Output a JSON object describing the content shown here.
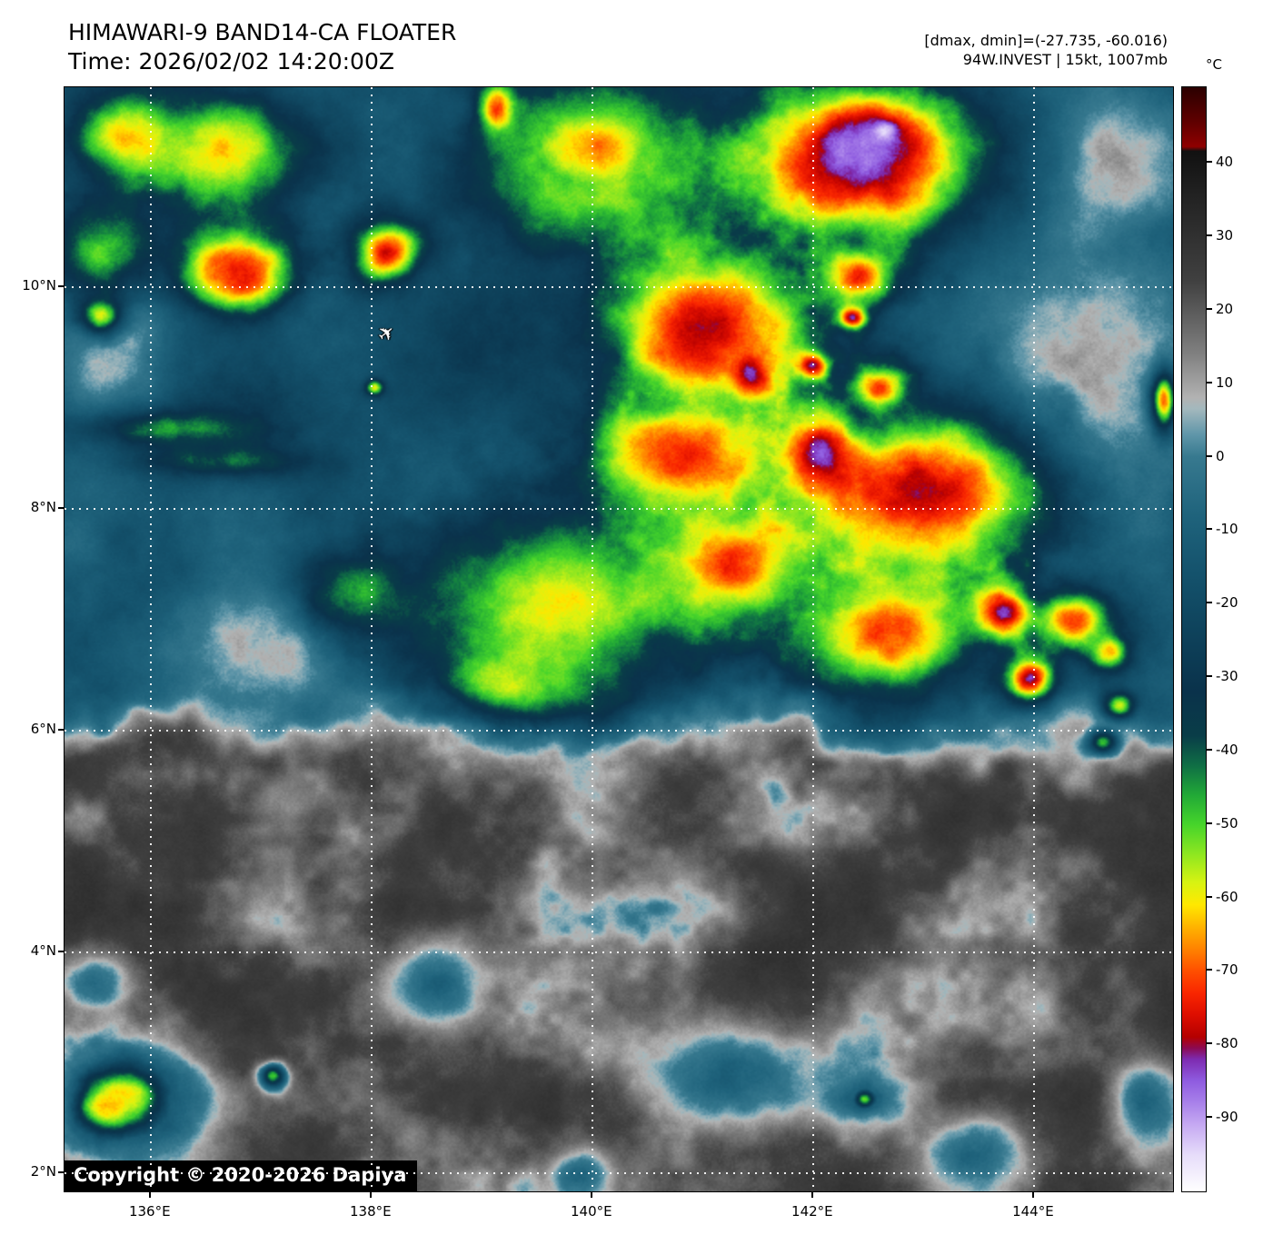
{
  "header": {
    "title": "HIMAWARI-9 BAND14-CA FLOATER",
    "time": "Time: 2026/02/02 14:20:00Z",
    "dmax_dmin": "[dmax, dmin]=(-27.735, -60.016)",
    "storm_info": "94W.INVEST | 15kt, 1007mb"
  },
  "colorbar": {
    "unit": "°C",
    "tick_values": [
      40,
      30,
      20,
      10,
      0,
      -10,
      -20,
      -30,
      -40,
      -50,
      -60,
      -70,
      -80,
      -90
    ],
    "domain": {
      "max": 50.3,
      "min": -100
    },
    "stops": [
      [
        50.3,
        "#2b0000"
      ],
      [
        45.5,
        "#600000"
      ],
      [
        42.2,
        "#8f0000"
      ],
      [
        41.6,
        "#111111"
      ],
      [
        34.0,
        "#262626"
      ],
      [
        24.0,
        "#404040"
      ],
      [
        14.0,
        "#808080"
      ],
      [
        8.0,
        "#b2b2b2"
      ],
      [
        6.5,
        "#a3b8bd"
      ],
      [
        3.0,
        "#5f96a9"
      ],
      [
        0.0,
        "#37798f"
      ],
      [
        -8.0,
        "#1f637c"
      ],
      [
        -16.0,
        "#14526c"
      ],
      [
        -24.0,
        "#0e425b"
      ],
      [
        -32.0,
        "#0a324b"
      ],
      [
        -38.0,
        "#093d48"
      ],
      [
        -42.0,
        "#0f6e45"
      ],
      [
        -46.0,
        "#21a837"
      ],
      [
        -50.0,
        "#45d42b"
      ],
      [
        -54.0,
        "#8ce621"
      ],
      [
        -58.0,
        "#d8f312"
      ],
      [
        -61.0,
        "#ffe800"
      ],
      [
        -64.0,
        "#ffb300"
      ],
      [
        -67.0,
        "#ff8300"
      ],
      [
        -70.0,
        "#ff4f00"
      ],
      [
        -73.0,
        "#f92600"
      ],
      [
        -76.0,
        "#dd0e00"
      ],
      [
        -79.0,
        "#b40000"
      ],
      [
        -80.5,
        "#8c0a52"
      ],
      [
        -82.0,
        "#7d2bb0"
      ],
      [
        -85.0,
        "#8f5ce0"
      ],
      [
        -88.0,
        "#a982ea"
      ],
      [
        -91.0,
        "#c6aaf2"
      ],
      [
        -95.0,
        "#e6dcfa"
      ],
      [
        -100.0,
        "#ffffff"
      ]
    ]
  },
  "map": {
    "extent": {
      "lon_min": 135.22,
      "lon_max": 145.26,
      "lat_min": 1.84,
      "lat_max": 11.8
    },
    "lat_ticks": [
      {
        "label": "10°N",
        "lat": 10
      },
      {
        "label": "8°N",
        "lat": 8
      },
      {
        "label": "6°N",
        "lat": 6
      },
      {
        "label": "4°N",
        "lat": 4
      },
      {
        "label": "2°N",
        "lat": 2
      }
    ],
    "lon_ticks": [
      {
        "label": "136°E",
        "lon": 136
      },
      {
        "label": "138°E",
        "lon": 138
      },
      {
        "label": "140°E",
        "lon": 140
      },
      {
        "label": "142°E",
        "lon": 142
      },
      {
        "label": "144°E",
        "lon": 144
      }
    ],
    "copyright": "Copyright © 2020-2026 Dapiya",
    "aircraft": {
      "lon": 138.17,
      "lat": 9.55,
      "glyph": "✈"
    }
  },
  "satellite": {
    "format": "[lon_deg_e, lat_deg_n, rx_deg, ry_deg, peak_cloudtop_temp_c]",
    "base": {
      "south_surface_temp_c": 31,
      "north_cirrus_temp_c": -13,
      "canopy_boundary_lat": 6.0
    },
    "features": [
      [
        135.77,
        11.35,
        0.6,
        0.45,
        -64
      ],
      [
        136.66,
        11.23,
        0.78,
        0.55,
        -63
      ],
      [
        136.76,
        10.16,
        0.6,
        0.45,
        -68
      ],
      [
        136.82,
        10.12,
        0.3,
        0.25,
        -74
      ],
      [
        135.55,
        10.32,
        0.5,
        0.45,
        -51
      ],
      [
        135.55,
        9.75,
        0.22,
        0.18,
        -58
      ],
      [
        138.14,
        10.32,
        0.33,
        0.3,
        -76
      ],
      [
        138.02,
        9.1,
        0.1,
        0.09,
        -60
      ],
      [
        139.13,
        11.61,
        0.18,
        0.26,
        -74
      ],
      [
        139.99,
        11.27,
        0.8,
        0.55,
        -66
      ],
      [
        139.9,
        11.0,
        1.25,
        0.75,
        -50
      ],
      [
        142.38,
        11.14,
        1.3,
        0.82,
        -78
      ],
      [
        142.48,
        11.28,
        0.5,
        0.42,
        -88
      ],
      [
        142.64,
        11.41,
        0.12,
        0.1,
        -96
      ],
      [
        142.4,
        10.1,
        0.3,
        0.26,
        -74
      ],
      [
        142.35,
        9.73,
        0.12,
        0.1,
        -83
      ],
      [
        142.6,
        9.09,
        0.25,
        0.2,
        -71
      ],
      [
        141.02,
        9.63,
        1.05,
        0.85,
        -78
      ],
      [
        141.42,
        9.21,
        0.2,
        0.2,
        -84
      ],
      [
        141.99,
        9.3,
        0.15,
        0.13,
        -83
      ],
      [
        142.95,
        8.15,
        1.3,
        0.85,
        -79
      ],
      [
        142.05,
        8.5,
        0.35,
        0.38,
        -86
      ],
      [
        142.94,
        8.31,
        0.1,
        0.09,
        -81
      ],
      [
        140.81,
        8.48,
        0.95,
        0.6,
        -74
      ],
      [
        141.27,
        7.5,
        0.7,
        0.55,
        -74
      ],
      [
        142.67,
        6.92,
        0.85,
        0.6,
        -72
      ],
      [
        143.74,
        7.07,
        0.27,
        0.25,
        -84
      ],
      [
        143.96,
        6.47,
        0.25,
        0.22,
        -82
      ],
      [
        139.66,
        7.13,
        1.45,
        1.0,
        -60
      ],
      [
        137.85,
        7.25,
        0.55,
        0.4,
        -46
      ],
      [
        139.25,
        6.47,
        0.6,
        0.35,
        -57
      ],
      [
        144.35,
        7.0,
        0.38,
        0.3,
        -72
      ],
      [
        144.68,
        6.72,
        0.2,
        0.18,
        -64
      ],
      [
        144.77,
        6.23,
        0.15,
        0.13,
        -60
      ],
      [
        144.62,
        5.9,
        0.15,
        0.13,
        -48
      ],
      [
        145.17,
        8.98,
        0.12,
        0.3,
        -68
      ],
      [
        135.8,
        2.7,
        0.5,
        0.4,
        -60
      ],
      [
        135.6,
        2.62,
        0.3,
        0.28,
        -63
      ],
      [
        137.1,
        2.89,
        0.13,
        0.12,
        -48
      ],
      [
        142.46,
        2.68,
        0.12,
        0.1,
        -52
      ],
      [
        139.05,
        9.55,
        0.9,
        0.8,
        -28
      ],
      [
        136.91,
        8.97,
        1.0,
        0.65,
        -25
      ],
      [
        136.21,
        8.73,
        0.9,
        0.2,
        -45
      ],
      [
        136.7,
        8.44,
        0.8,
        0.15,
        -42
      ],
      [
        135.9,
        2.6,
        0.8,
        0.6,
        -12
      ],
      [
        142.4,
        2.7,
        0.45,
        0.25,
        -10
      ],
      [
        138.57,
        3.71,
        0.45,
        0.4,
        -9
      ],
      [
        141.23,
        2.9,
        0.85,
        0.5,
        -10
      ],
      [
        139.88,
        2.0,
        0.3,
        0.2,
        -8
      ],
      [
        143.45,
        2.17,
        0.5,
        0.35,
        -9
      ],
      [
        145.0,
        2.66,
        0.3,
        0.4,
        -8
      ],
      [
        135.5,
        3.72,
        0.3,
        0.25,
        -8
      ]
    ],
    "warm_regions": [
      [
        135.69,
        9.34,
        0.55,
        0.85,
        12
      ],
      [
        144.41,
        9.14,
        1.0,
        1.2,
        13
      ],
      [
        144.68,
        11.14,
        0.7,
        0.7,
        12
      ],
      [
        137.09,
        6.76,
        1.0,
        0.6,
        11
      ]
    ]
  }
}
